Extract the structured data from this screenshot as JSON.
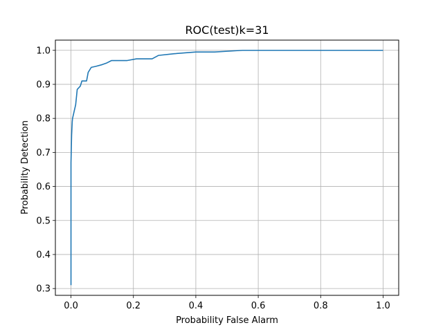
{
  "chart_data": {
    "type": "line",
    "title": "ROC(test)k=31",
    "xlabel": "Probability False Alarm",
    "ylabel": "Probability Detection",
    "xlim": [
      -0.05,
      1.05
    ],
    "ylim": [
      0.28,
      1.03
    ],
    "xticks": [
      0.0,
      0.2,
      0.4,
      0.6,
      0.8,
      1.0
    ],
    "xtick_labels": [
      "0.0",
      "0.2",
      "0.4",
      "0.6",
      "0.8",
      "1.0"
    ],
    "yticks": [
      0.3,
      0.4,
      0.5,
      0.6,
      0.7,
      0.8,
      0.9,
      1.0
    ],
    "ytick_labels": [
      "0.3",
      "0.4",
      "0.5",
      "0.6",
      "0.7",
      "0.8",
      "0.9",
      "1.0"
    ],
    "grid": true,
    "line_color": "#1f77b4",
    "series": [
      {
        "x": [
          0.0,
          0.0,
          0.002,
          0.004,
          0.005,
          0.01,
          0.015,
          0.02,
          0.03,
          0.035,
          0.05,
          0.055,
          0.065,
          0.08,
          0.1,
          0.115,
          0.13,
          0.18,
          0.21,
          0.26,
          0.28,
          0.33,
          0.4,
          0.46,
          0.55,
          0.6,
          0.7,
          0.8,
          0.9,
          1.0
        ],
        "y": [
          0.31,
          0.67,
          0.75,
          0.79,
          0.8,
          0.82,
          0.84,
          0.885,
          0.895,
          0.91,
          0.91,
          0.935,
          0.95,
          0.953,
          0.958,
          0.963,
          0.97,
          0.97,
          0.975,
          0.975,
          0.985,
          0.99,
          0.995,
          0.995,
          1.0,
          1.0,
          1.0,
          1.0,
          1.0,
          1.0
        ]
      }
    ]
  }
}
